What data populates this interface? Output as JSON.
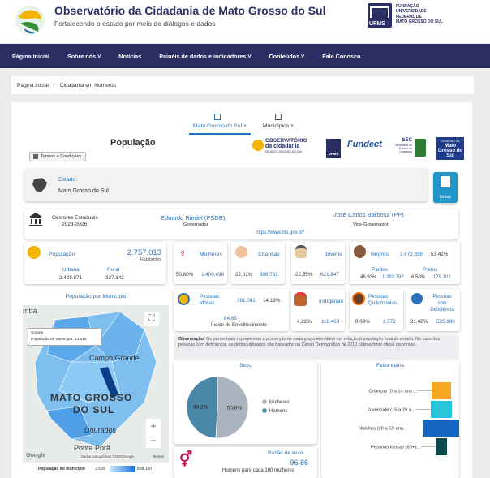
{
  "header": {
    "title": "Observatório da Cidadania de Mato Grosso do Sul",
    "subtitle": "Fortalecendo o estado por meio de diálogos e dados",
    "ufms_lines": [
      "FUNDAÇÃO",
      "UNIVERSIDADE",
      "FEDERAL DE",
      "MATO GROSSO DO SUL"
    ],
    "ufms_label": "UFMS"
  },
  "nav": {
    "items": [
      "Página Inicial",
      "Sobre nós",
      "Notícias",
      "Painéis de dados e indicadores",
      "Conteúdos",
      "Fale Conosco"
    ]
  },
  "breadcrumb": {
    "home": "Página inicial",
    "sep": "/",
    "current": "Cidadania em Números"
  },
  "tabs": {
    "state": "Mato Grosso do Sul",
    "municipios": "Municípios"
  },
  "page_title": "População",
  "terms_label": "Termos e Condições",
  "partners": {
    "obs_line1": "OBSERVATÓRIO",
    "obs_line2": "da cidadania",
    "obs_line3": "DE MATO GROSSO DO SUL",
    "ufms": "UFMS",
    "fundect": "Fundect",
    "sec": "SEC",
    "sec_sub": "Secretaria do Estado da Cidadania",
    "gov_line1": "GOVERNO DE",
    "gov_line2": "Mato Grosso do Sul"
  },
  "estado": {
    "label": "Estado:",
    "value": "Mato Grosso do Sul"
  },
  "notas_label": "Notas",
  "gestores": {
    "label": "Gestores Estaduais",
    "period": "2023-2026",
    "governor": "Eduardo Riedel (PSDB)",
    "governor_role": "Governador",
    "vice": "José Carlos Barbosa (PP)",
    "vice_role": "Vice-Governador",
    "site": "https://www.ms.gov.br/"
  },
  "populacao": {
    "label": "População",
    "total": "2.757.013",
    "unit": "Habitantes",
    "urbana_label": "Urbana",
    "urbana": "2.429.871",
    "rural_label": "Rural",
    "rural": "327.142"
  },
  "mulheres": {
    "label": "Mulheres",
    "pct": "50,80%",
    "value": "1.400.498"
  },
  "criancas": {
    "label": "Crianças",
    "pct": "22,01%",
    "value": "606.792"
  },
  "jovens": {
    "label": "Jovens",
    "pct": "22,55%",
    "value": "621.847"
  },
  "negros": {
    "label": "Negros",
    "value": "1.472.898",
    "pct": "53,42%",
    "pardos_label": "Pardos",
    "pardos_pct": "46,93%",
    "pardos": "1.293.797",
    "pretos_label": "Pretos",
    "pretos_pct": "6,50%",
    "pretos": "179.101"
  },
  "idosas": {
    "label1": "Pessoas",
    "label2": "Idosas",
    "value": "391.091",
    "pct": "14,19%",
    "ie_value": "64,65",
    "ie_label": "Índice de Envelhecimento"
  },
  "indigenas": {
    "label": "Indígenas",
    "pct": "4,22%",
    "value": "116.469"
  },
  "quilombolas": {
    "label1": "Pessoas",
    "label2": "Quilombolas",
    "pct": "0,09%",
    "value": "2.572"
  },
  "deficiencia": {
    "label1": "Pessoas",
    "label2": "com Deficiência",
    "pct": "21,48%",
    "value": "525.980"
  },
  "map": {
    "title": "População por Município",
    "tooltip_name": "Sonora",
    "tooltip_value": "População do município: 14.516",
    "label_campo": "Campo Grande",
    "label_state1": "MATO GROSSO",
    "label_state2": "DO SUL",
    "label_dourados": "Dourados",
    "label_ponta": "Ponta Porã",
    "label_left": "mbá",
    "google": "Google",
    "attribution": "Dados cartográficos ©2025 Google",
    "terms": "Termos",
    "legend_label": "População do município",
    "legend_min": "3.539",
    "legend_max": "898.100",
    "zoom_in": "+",
    "zoom_out": "−",
    "fullscreen": "⛶"
  },
  "observacao": {
    "label": "Observação!",
    "text": "Os percentuais representam a proporção de cada grupo identitário em relação à população total do estado. No caso das pessoas com deficiência, os dados utilizados são baseados no Censo Demográfico de 2010, última fonte oficial disponível."
  },
  "colors": {
    "nav": "#2b2e62",
    "women": "#aab4be",
    "men": "#4a86a8",
    "accent": "#2a73b8"
  },
  "chart_data": [
    {
      "type": "pie",
      "title": "Sexo",
      "categories": [
        "Mulheres",
        "Homens"
      ],
      "values": [
        50.8,
        49.2
      ],
      "labels": [
        "50,8%",
        "49,2%"
      ],
      "legend": "right"
    },
    {
      "type": "bar",
      "title": "Faixa etária",
      "categories": [
        "Crianças (0 a 14 ano...",
        "Juventude (15 a 29 a...",
        "Adultos (30 a 59 ano...",
        "Pessoas Idosas (60+)..."
      ],
      "colors": [
        "#f5a623",
        "#26c6da",
        "#1565c0",
        "#0b4a4a"
      ]
    }
  ],
  "razao": {
    "label": "Razão de sexo",
    "value": "96,86",
    "desc": "Homens para cada 100 mulheres"
  }
}
